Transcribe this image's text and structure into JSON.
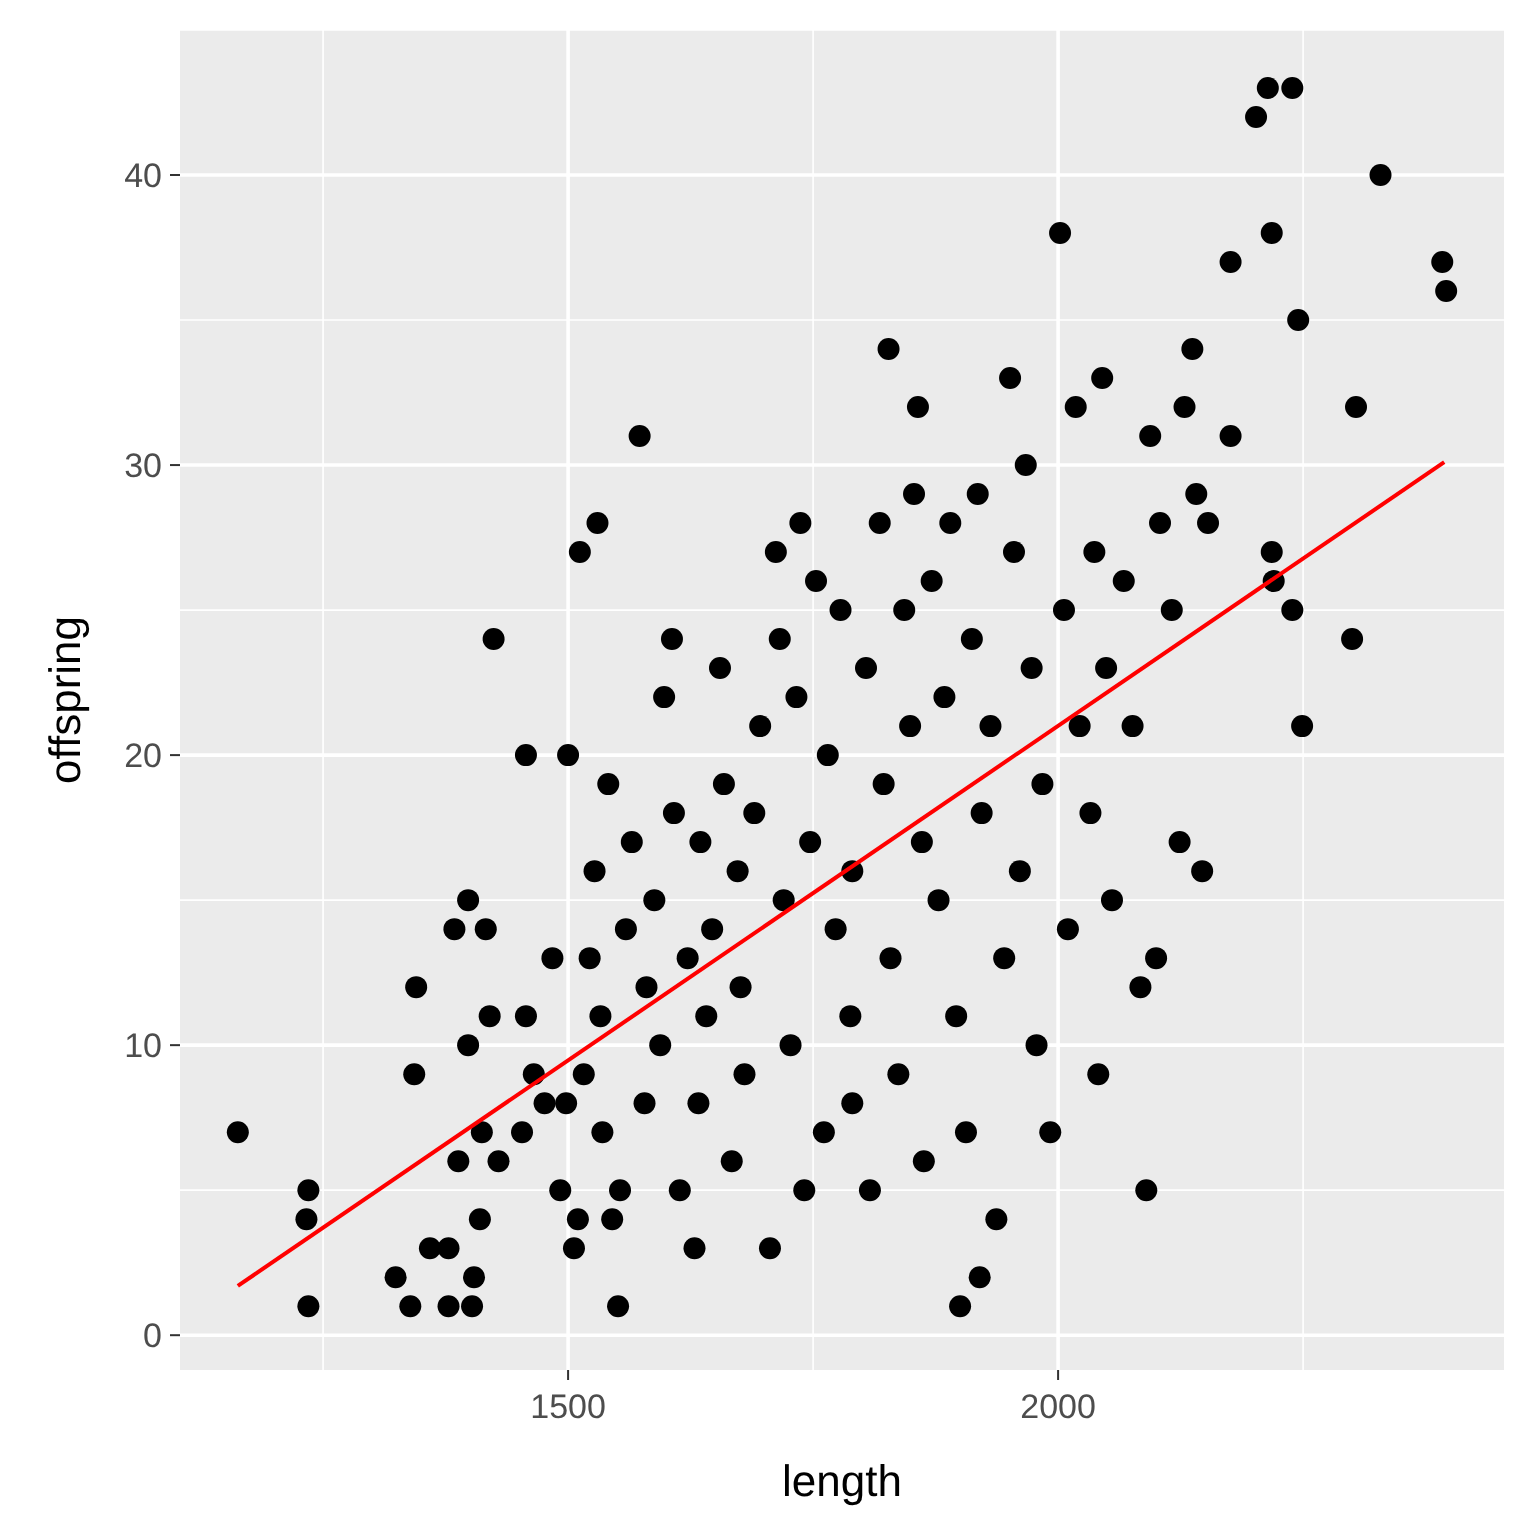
{
  "chart_data": {
    "type": "scatter",
    "xlabel": "length",
    "ylabel": "offspring",
    "xlim": [
      1104,
      2455
    ],
    "ylim": [
      -1.2,
      45
    ],
    "xticks": [
      1500,
      2000
    ],
    "yticks": [
      0,
      10,
      20,
      30,
      40
    ],
    "grid": true,
    "marker": "circle",
    "series": [
      {
        "color": "#000000",
        "x": [
          1163,
          1233,
          1235,
          1235,
          1324,
          1339,
          1345,
          1343,
          1359,
          1378,
          1378,
          1384,
          1388,
          1398,
          1398,
          1404,
          1402,
          1410,
          1416,
          1420,
          1424,
          1412,
          1429,
          1453,
          1457,
          1457,
          1465,
          1476,
          1484,
          1492,
          1498,
          1500,
          1506,
          1510,
          1512,
          1530,
          1516,
          1522,
          1527,
          1533,
          1535,
          1541,
          1545,
          1551,
          1553,
          1559,
          1565,
          1573,
          1578,
          1580,
          1588,
          1594,
          1598,
          1606,
          1608,
          1614,
          1622,
          1629,
          1633,
          1635,
          1641,
          1647,
          1655,
          1659,
          1667,
          1673,
          1676,
          1680,
          1690,
          1696,
          1706,
          1712,
          1716,
          1720,
          1727,
          1733,
          1737,
          1741,
          1747,
          1753,
          1761,
          1765,
          1773,
          1778,
          1788,
          1790,
          1790,
          1804,
          1808,
          1818,
          1822,
          1827,
          1829,
          1837,
          1843,
          1849,
          1853,
          1857,
          1861,
          1863,
          1871,
          1878,
          1884,
          1890,
          1896,
          1900,
          1906,
          1912,
          1918,
          1920,
          1922,
          1931,
          1937,
          1945,
          1951,
          1955,
          1961,
          1967,
          1973,
          1978,
          1984,
          1992,
          2002,
          2006,
          2010,
          2018,
          2022,
          2033,
          2037,
          2041,
          2045,
          2049,
          2055,
          2067,
          2076,
          2084,
          2090,
          2094,
          2100,
          2104,
          2116,
          2124,
          2129,
          2137,
          2141,
          2147,
          2153,
          2176,
          2176,
          2202,
          2218,
          2214,
          2239,
          2218,
          2220,
          2239,
          2245,
          2249,
          2300,
          2304,
          2329,
          2392,
          2396
        ],
        "values": [
          7,
          4,
          5,
          1,
          2,
          1,
          12,
          9,
          3,
          3,
          1,
          14,
          6,
          15,
          10,
          2,
          1,
          4,
          14,
          11,
          24,
          7,
          6,
          7,
          20,
          11,
          9,
          8,
          13,
          5,
          8,
          20,
          3,
          4,
          27,
          28,
          9,
          13,
          16,
          11,
          7,
          19,
          4,
          1,
          5,
          14,
          17,
          31,
          8,
          12,
          15,
          10,
          22,
          24,
          18,
          5,
          13,
          3,
          8,
          17,
          11,
          14,
          23,
          19,
          6,
          16,
          12,
          9,
          18,
          21,
          3,
          27,
          24,
          15,
          10,
          22,
          28,
          5,
          17,
          26,
          7,
          20,
          14,
          25,
          11,
          8,
          16,
          23,
          5,
          28,
          19,
          34,
          13,
          9,
          25,
          21,
          29,
          32,
          17,
          6,
          26,
          15,
          22,
          28,
          11,
          1,
          7,
          24,
          29,
          2,
          18,
          21,
          4,
          13,
          33,
          27,
          16,
          30,
          23,
          10,
          19,
          7,
          38,
          25,
          14,
          32,
          21,
          18,
          27,
          9,
          33,
          23,
          15,
          26,
          21,
          12,
          5,
          31,
          13,
          28,
          25,
          17,
          32,
          34,
          29,
          16,
          28,
          31,
          37,
          42,
          38,
          43,
          43,
          27,
          26,
          25,
          35,
          21,
          24,
          32,
          40,
          37,
          36
        ]
      },
      {
        "type": "line",
        "color": "#ff0000",
        "x": [
          1163,
          2394
        ],
        "values": [
          1.7,
          30.1
        ],
        "marker": "none"
      }
    ]
  }
}
